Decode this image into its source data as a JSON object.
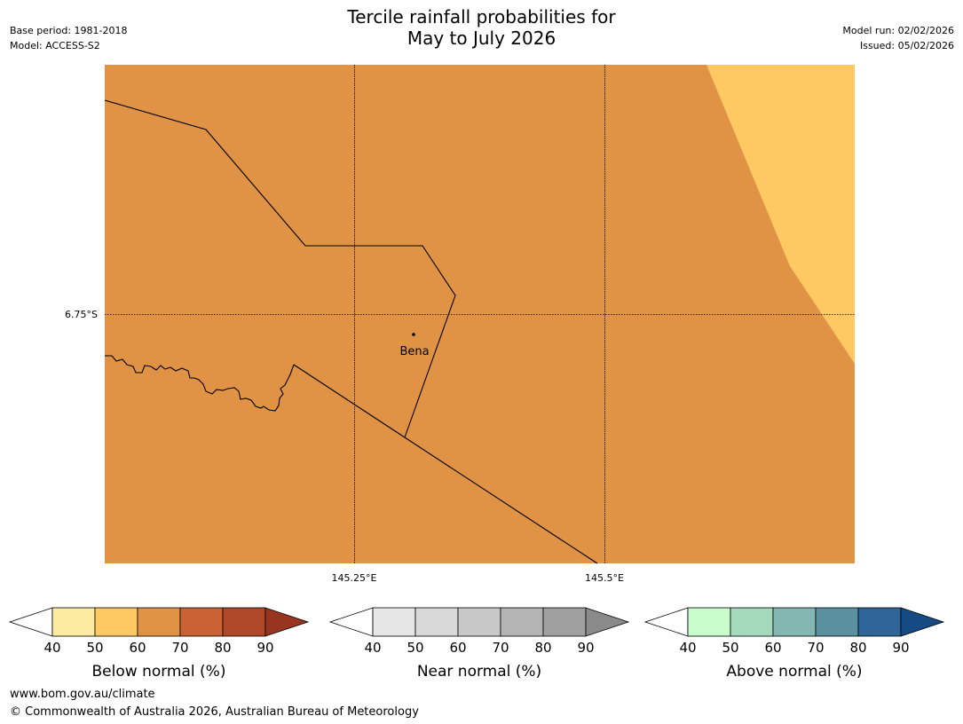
{
  "header": {
    "title_line1": "Tercile rainfall probabilities for",
    "title_line2": "May to July 2026",
    "base_period": "Base period: 1981-2018",
    "model": "Model: ACCESS-S2",
    "model_run": "Model run: 02/02/2026",
    "issued": "Issued: 05/02/2026"
  },
  "map": {
    "lat_label": "6.75°S",
    "lon_labels": [
      "145.25°E",
      "145.5°E"
    ],
    "place_label": "Bena",
    "colors": {
      "dominant_fill": "#E09345",
      "secondary_fill": "#FEC863",
      "gridline": "#000000"
    }
  },
  "colorbars": [
    {
      "label": "Below normal (%)",
      "ticks": [
        "40",
        "50",
        "60",
        "70",
        "80",
        "90"
      ],
      "colors": [
        "#FFFFFF",
        "#FEEBA2",
        "#FEC863",
        "#E09345",
        "#CA6334",
        "#AE4828",
        "#973521"
      ]
    },
    {
      "label": "Near normal (%)",
      "ticks": [
        "40",
        "50",
        "60",
        "70",
        "80",
        "90"
      ],
      "colors": [
        "#FFFFFF",
        "#E6E6E6",
        "#D9D9D9",
        "#C8C8C8",
        "#B4B4B4",
        "#A0A0A0",
        "#8A8A8A"
      ]
    },
    {
      "label": "Above normal (%)",
      "ticks": [
        "40",
        "50",
        "60",
        "70",
        "80",
        "90"
      ],
      "colors": [
        "#FFFFFF",
        "#C9FCCB",
        "#A4D9BC",
        "#82B8B1",
        "#5A919F",
        "#2F6598",
        "#154A84"
      ]
    }
  ],
  "footer": {
    "url": "www.bom.gov.au/climate",
    "copyright": "© Commonwealth of Australia 2026, Australian Bureau of Meteorology"
  }
}
